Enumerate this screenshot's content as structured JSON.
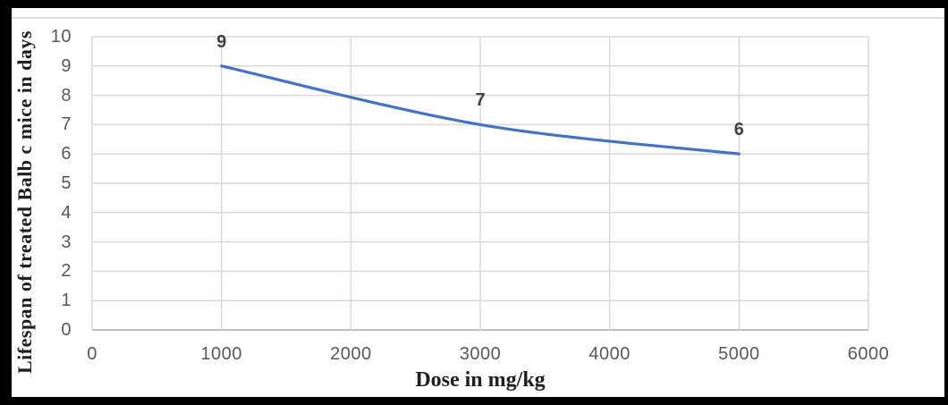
{
  "chart_data": {
    "type": "line",
    "title": "",
    "x": [
      1000,
      3000,
      5000
    ],
    "values": [
      9,
      7,
      6
    ],
    "data_labels": [
      "9",
      "7",
      "6"
    ],
    "xlabel": "Dose in mg/kg",
    "ylabel": "Lifespan of treated Balb c mice in days",
    "xlim": [
      0,
      6000
    ],
    "ylim": [
      0,
      10
    ],
    "x_ticks": [
      "0",
      "1000",
      "2000",
      "3000",
      "4000",
      "5000",
      "6000"
    ],
    "y_ticks": [
      "10",
      "9",
      "8",
      "7",
      "6",
      "5",
      "4",
      "3",
      "2",
      "1",
      "0"
    ],
    "grid": true,
    "legend_position": "none",
    "smooth_line": true,
    "colors": {
      "line": "#4472C4",
      "gridline": "#D9D9D9",
      "axis_line": "#BFBFBF",
      "tick_label": "#595959",
      "data_label": "#404040",
      "axis_title": "#1F1F1F",
      "frame_border": "#000000",
      "background": "#FFFFFF"
    }
  }
}
